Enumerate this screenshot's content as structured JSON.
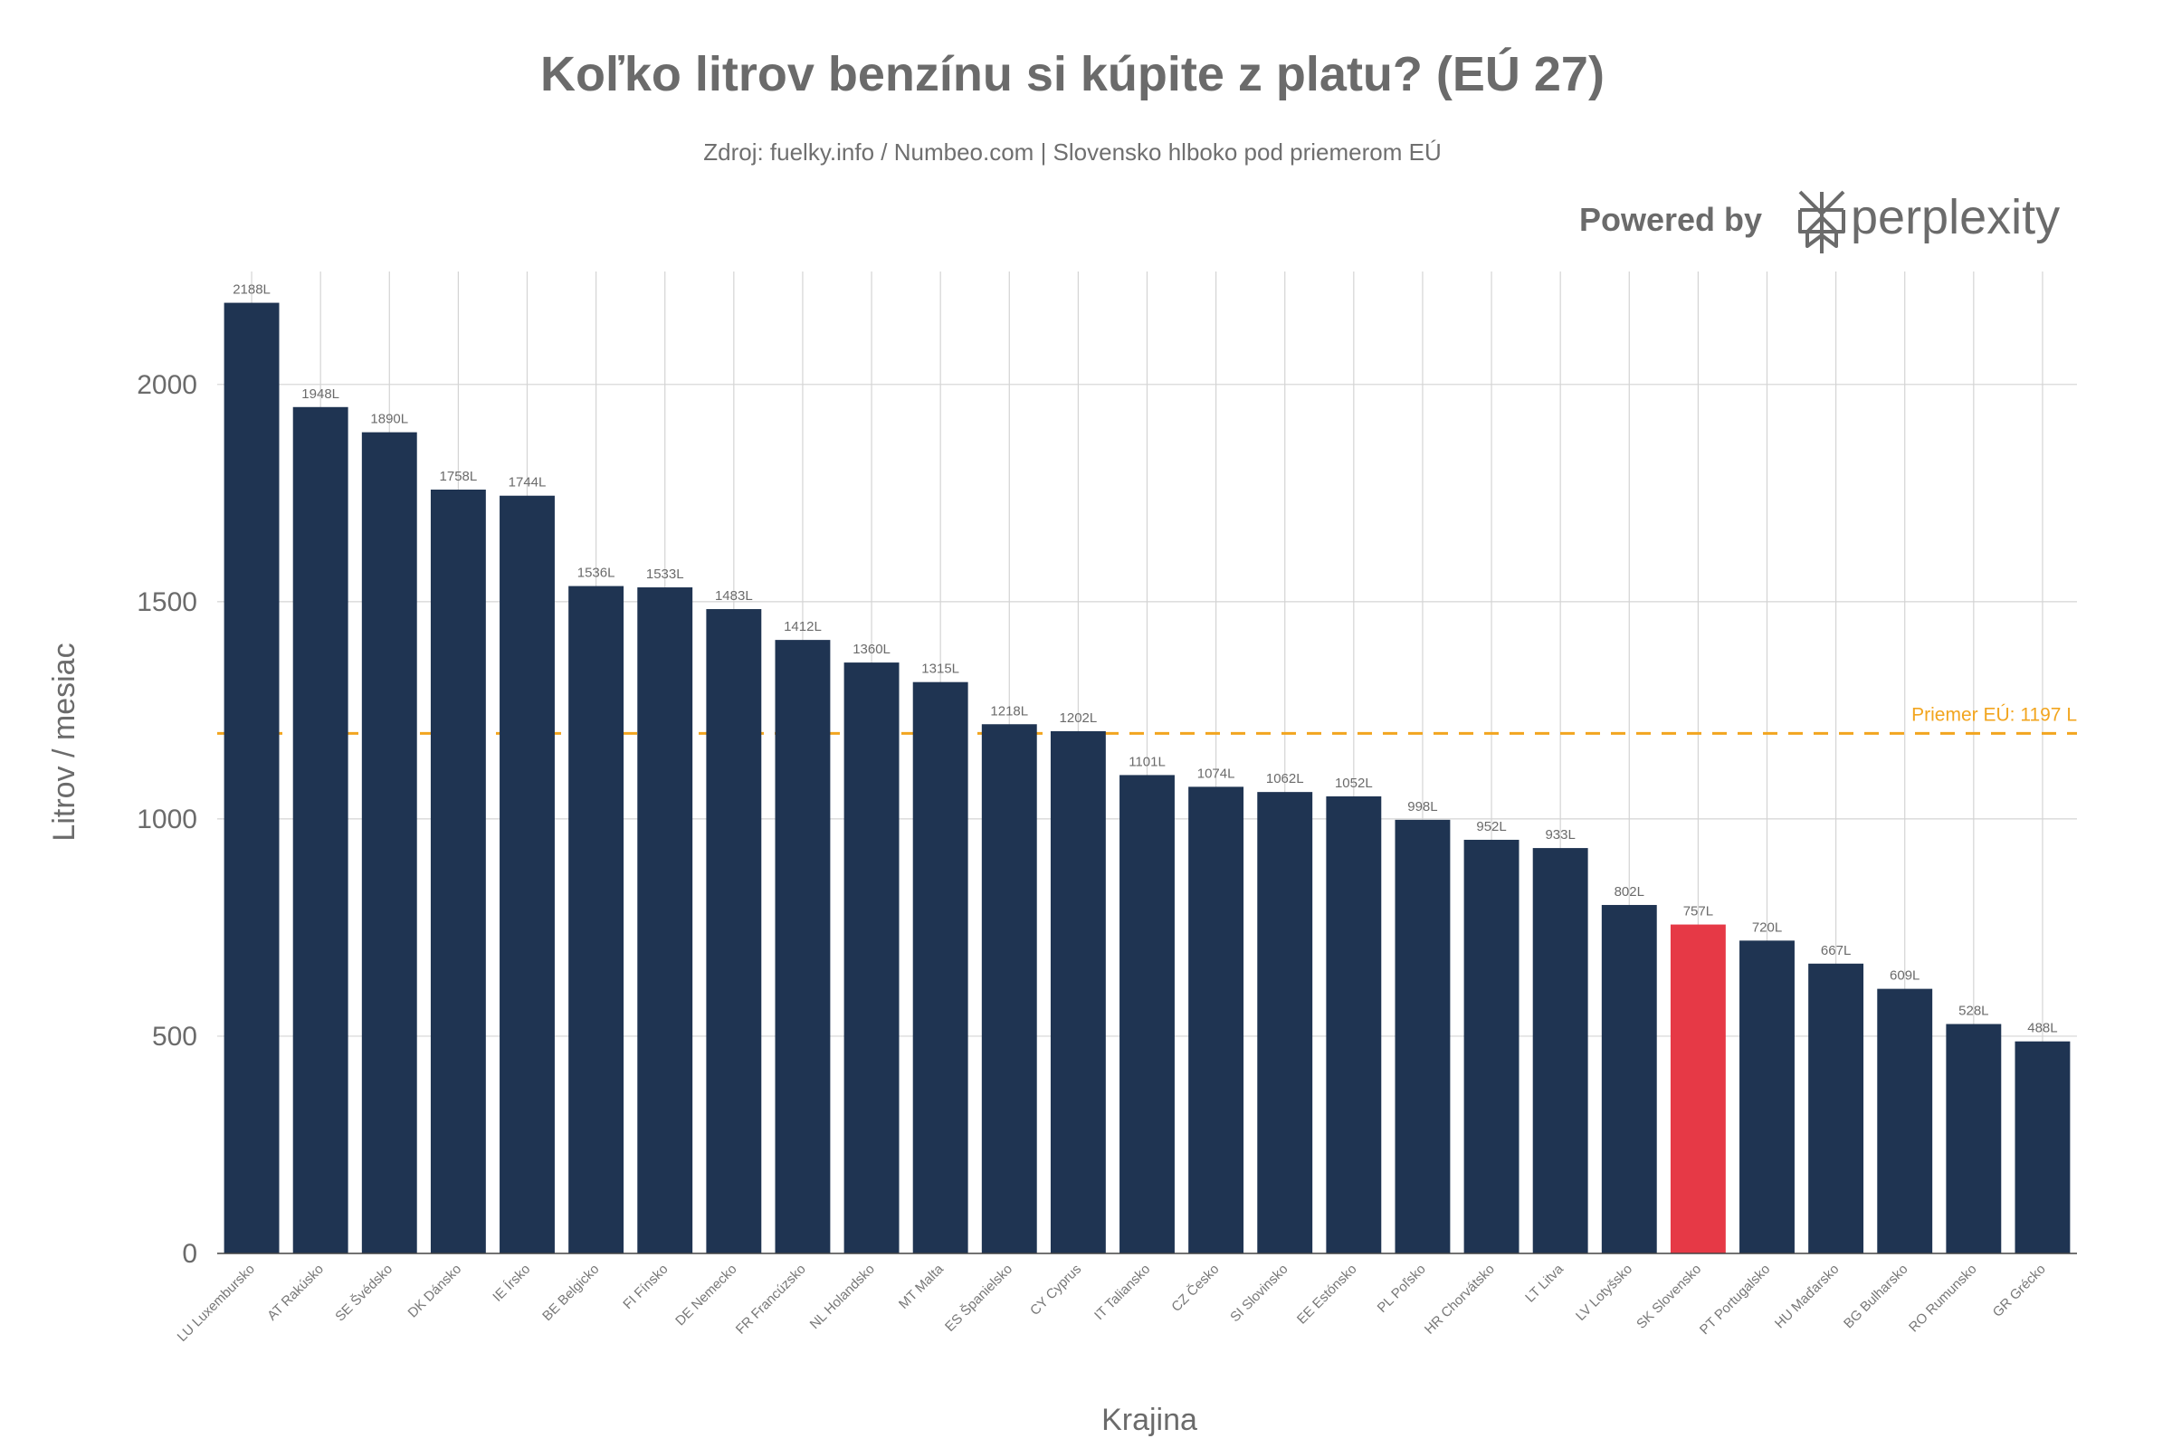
{
  "chart_data": {
    "type": "bar",
    "title": "Koľko litrov benzínu si kúpite z platu? (EÚ 27)",
    "subtitle": "Zdroj: fuelky.info / Numbeo.com | Slovensko hlboko pod priemerom EÚ",
    "xlabel": "Krajina",
    "ylabel": "Litrov / mesiac",
    "ylim": [
      0,
      2260
    ],
    "yticks": [
      0,
      500,
      1000,
      1500,
      2000
    ],
    "grid": true,
    "categories": [
      {
        "code": "LU",
        "name": "Luxembursko"
      },
      {
        "code": "AT",
        "name": "Rakúsko"
      },
      {
        "code": "SE",
        "name": "Švédsko"
      },
      {
        "code": "DK",
        "name": "Dánsko"
      },
      {
        "code": "IE",
        "name": "Írsko"
      },
      {
        "code": "BE",
        "name": "Belgicko"
      },
      {
        "code": "FI",
        "name": "Fínsko"
      },
      {
        "code": "DE",
        "name": "Nemecko"
      },
      {
        "code": "FR",
        "name": "Francúzsko"
      },
      {
        "code": "NL",
        "name": "Holandsko"
      },
      {
        "code": "MT",
        "name": "Malta"
      },
      {
        "code": "ES",
        "name": "Španielsko"
      },
      {
        "code": "CY",
        "name": "Cyprus"
      },
      {
        "code": "IT",
        "name": "Taliansko"
      },
      {
        "code": "CZ",
        "name": "Česko"
      },
      {
        "code": "SI",
        "name": "Slovinsko"
      },
      {
        "code": "EE",
        "name": "Estónsko"
      },
      {
        "code": "PL",
        "name": "Poľsko"
      },
      {
        "code": "HR",
        "name": "Chorvátsko"
      },
      {
        "code": "LT",
        "name": "Litva"
      },
      {
        "code": "LV",
        "name": "Lotyšsko"
      },
      {
        "code": "SK",
        "name": "Slovensko"
      },
      {
        "code": "PT",
        "name": "Portugalsko"
      },
      {
        "code": "HU",
        "name": "Maďarsko"
      },
      {
        "code": "BG",
        "name": "Bulharsko"
      },
      {
        "code": "RO",
        "name": "Rumunsko"
      },
      {
        "code": "GR",
        "name": "Grécko"
      }
    ],
    "values": [
      2188,
      1948,
      1890,
      1758,
      1744,
      1536,
      1533,
      1483,
      1412,
      1360,
      1315,
      1218,
      1202,
      1101,
      1074,
      1062,
      1052,
      998,
      952,
      933,
      802,
      757,
      720,
      667,
      609,
      528,
      488
    ],
    "value_suffix": "L",
    "highlight_index": 21,
    "average": {
      "value": 1197,
      "label": "Priemer EÚ: 1197 L"
    },
    "colors": {
      "bar": "#1f3452",
      "highlight": "#e63946",
      "average": "#f2a51f",
      "grid": "#d4d4d4",
      "text": "#6b6b6b"
    }
  },
  "branding": {
    "powered_by": "Powered by",
    "logo_name": "perplexity",
    "logo_icon": "perplexity-logo-icon"
  }
}
